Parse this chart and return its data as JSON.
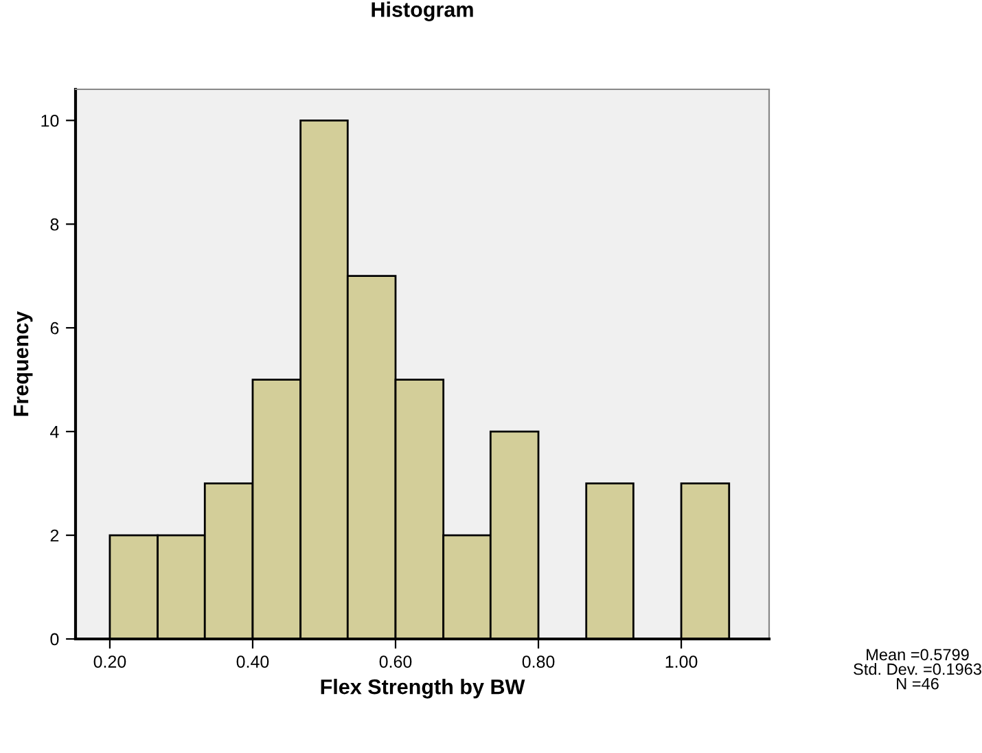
{
  "chart_data": {
    "type": "histogram",
    "title": "Histogram",
    "xlabel": "Flex Strength by BW",
    "ylabel": "Frequency",
    "bins": [
      0.2,
      0.267,
      0.333,
      0.4,
      0.467,
      0.533,
      0.6,
      0.667,
      0.733,
      0.8,
      0.867,
      0.933,
      1.0,
      1.067
    ],
    "values": [
      2,
      2,
      3,
      5,
      10,
      7,
      5,
      2,
      4,
      0,
      3,
      0,
      3
    ],
    "color": "#d3ce99",
    "xlim": [
      0.152,
      1.123
    ],
    "xticks": [
      {
        "value": 0.2,
        "label": "0.20"
      },
      {
        "value": 0.4,
        "label": "0.40"
      },
      {
        "value": 0.6,
        "label": "0.60"
      },
      {
        "value": 0.8,
        "label": "0.80"
      },
      {
        "value": 1.0,
        "label": "1.00"
      }
    ],
    "ylim": [
      0,
      10.6
    ],
    "yticks": [
      0,
      2,
      4,
      6,
      8,
      10
    ],
    "grid": false,
    "legend": false,
    "annotations": [
      "Mean =0.5799\nStd. Dev. =0.1963\nN =46"
    ]
  }
}
